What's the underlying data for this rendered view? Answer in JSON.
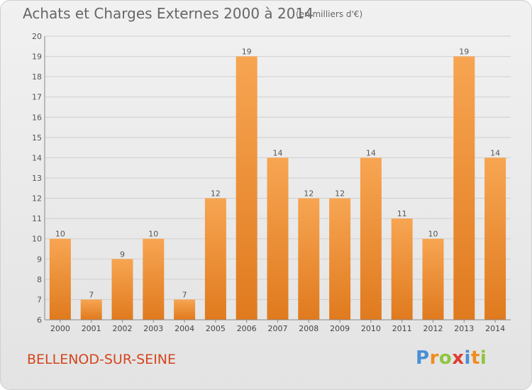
{
  "header": {
    "title": "Achats et Charges Externes 2000 à 2014",
    "subtitle": "(en milliers d'€)"
  },
  "footer": {
    "commune": "BELLENOD-SUR-SEINE",
    "brand": "Proxiti",
    "brand_letters": [
      {
        "ch": "P",
        "color": "#4a8fd6"
      },
      {
        "ch": "r",
        "color": "#f08c1e"
      },
      {
        "ch": "o",
        "color": "#8dc63f"
      },
      {
        "ch": "x",
        "color": "#e03c31"
      },
      {
        "ch": "i",
        "color": "#4a8fd6"
      },
      {
        "ch": "t",
        "color": "#f08c1e"
      },
      {
        "ch": "i",
        "color": "#8dc63f"
      }
    ]
  },
  "chart_data": {
    "type": "bar",
    "categories": [
      "2000",
      "2001",
      "2002",
      "2003",
      "2004",
      "2005",
      "2006",
      "2007",
      "2008",
      "2009",
      "2010",
      "2011",
      "2012",
      "2013",
      "2014"
    ],
    "values": [
      10,
      7,
      9,
      10,
      7,
      12,
      19,
      14,
      12,
      12,
      14,
      11,
      10,
      19,
      14
    ],
    "ylim": [
      6,
      20
    ],
    "yticks": [
      6,
      7,
      8,
      9,
      10,
      11,
      12,
      13,
      14,
      15,
      16,
      17,
      18,
      19,
      20
    ],
    "grid": true,
    "bar_color_top": "#f7a552",
    "bar_color_bottom": "#e07a1e"
  }
}
